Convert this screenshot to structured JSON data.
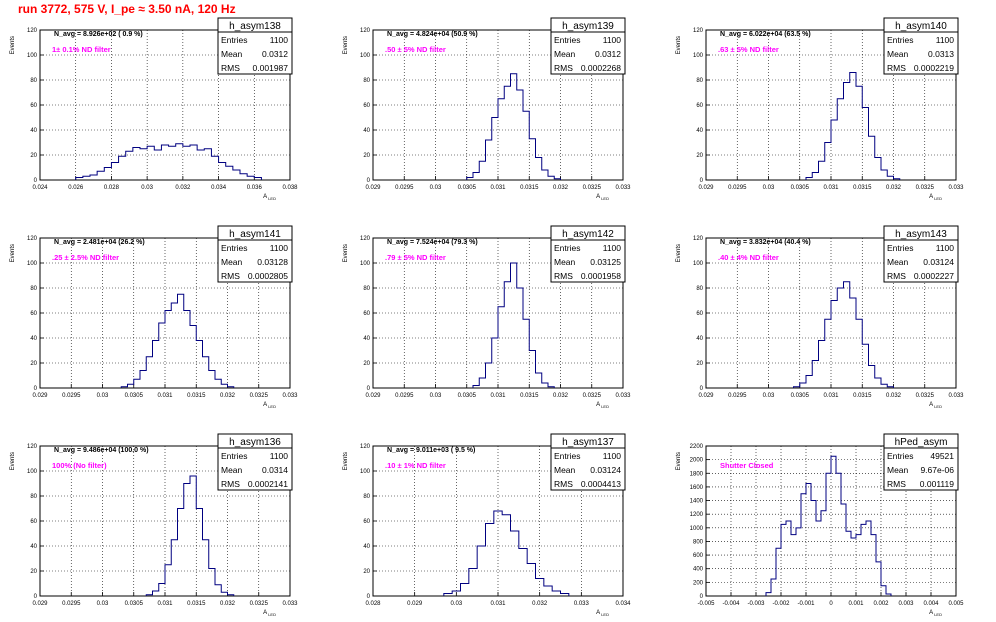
{
  "page": {
    "title": "run 3772,   575 V, I_pe ≈ 3.50 nA, 120 Hz",
    "title_color": "#ff0000",
    "hist_color": "#000080",
    "label_color": "#ff00ff",
    "stats_labels": {
      "entries": "Entries",
      "mean": "Mean",
      "rms": "RMS"
    }
  },
  "chart_data": [
    {
      "type": "histogram",
      "name": "h_asym138",
      "ylabel": "Events",
      "xlabel": "A_LED",
      "navg": "N_avg = 8.926e+02 ( 0.9 %)",
      "filter": "1± 0.1% ND filter",
      "entries": "1100",
      "mean": "0.0312",
      "rms": "0.001987",
      "xlim": [
        0.024,
        0.038
      ],
      "xticks": [
        "0.024",
        "0.026",
        "0.028",
        "0.03",
        "0.032",
        "0.034",
        "0.036",
        "0.038"
      ],
      "ylim": [
        0,
        120
      ],
      "yticks": [
        "0",
        "20",
        "40",
        "60",
        "80",
        "100",
        "120"
      ],
      "bins": [
        [
          0.0262,
          2
        ],
        [
          0.0266,
          3
        ],
        [
          0.027,
          4
        ],
        [
          0.0274,
          7
        ],
        [
          0.0278,
          10
        ],
        [
          0.0282,
          14
        ],
        [
          0.0286,
          19
        ],
        [
          0.029,
          23
        ],
        [
          0.0294,
          26
        ],
        [
          0.0298,
          25
        ],
        [
          0.0302,
          27
        ],
        [
          0.0306,
          24
        ],
        [
          0.031,
          28
        ],
        [
          0.0314,
          27
        ],
        [
          0.0318,
          29
        ],
        [
          0.0322,
          27
        ],
        [
          0.0326,
          28
        ],
        [
          0.033,
          24
        ],
        [
          0.0334,
          25
        ],
        [
          0.0338,
          19
        ],
        [
          0.0342,
          14
        ],
        [
          0.0346,
          11
        ],
        [
          0.035,
          8
        ],
        [
          0.0354,
          5
        ],
        [
          0.0358,
          3
        ],
        [
          0.0362,
          2
        ]
      ]
    },
    {
      "type": "histogram",
      "name": "h_asym139",
      "ylabel": "Events",
      "xlabel": "A_LED",
      "navg": "N_avg = 4.824e+04 (50.9 %)",
      "filter": ".50 ± 5% ND filter",
      "entries": "1100",
      "mean": "0.0312",
      "rms": "0.0002268",
      "xlim": [
        0.029,
        0.033
      ],
      "xticks": [
        "0.029",
        "0.0295",
        "0.03",
        "0.0305",
        "0.031",
        "0.0315",
        "0.032",
        "0.0325",
        "0.033"
      ],
      "ylim": [
        0,
        120
      ],
      "yticks": [
        "0",
        "20",
        "40",
        "60",
        "80",
        "100",
        "120"
      ],
      "bins": [
        [
          0.03055,
          2
        ],
        [
          0.03065,
          6
        ],
        [
          0.03075,
          15
        ],
        [
          0.03085,
          32
        ],
        [
          0.03095,
          50
        ],
        [
          0.03105,
          65
        ],
        [
          0.03115,
          75
        ],
        [
          0.03125,
          85
        ],
        [
          0.03135,
          72
        ],
        [
          0.03145,
          55
        ],
        [
          0.03155,
          33
        ],
        [
          0.03165,
          18
        ],
        [
          0.03175,
          8
        ],
        [
          0.03185,
          3
        ],
        [
          0.03195,
          1
        ]
      ]
    },
    {
      "type": "histogram",
      "name": "h_asym140",
      "ylabel": "Events",
      "xlabel": "A_LED",
      "navg": "N_avg = 6.022e+04 (63.5 %)",
      "filter": ".63 ± 5% ND filter",
      "entries": "1100",
      "mean": "0.0313",
      "rms": "0.0002219",
      "xlim": [
        0.029,
        0.033
      ],
      "xticks": [
        "0.029",
        "0.0295",
        "0.03",
        "0.0305",
        "0.031",
        "0.0315",
        "0.032",
        "0.0325",
        "0.033"
      ],
      "ylim": [
        0,
        120
      ],
      "yticks": [
        "0",
        "20",
        "40",
        "60",
        "80",
        "100",
        "120"
      ],
      "bins": [
        [
          0.03065,
          2
        ],
        [
          0.03075,
          6
        ],
        [
          0.03085,
          15
        ],
        [
          0.03095,
          30
        ],
        [
          0.03105,
          48
        ],
        [
          0.03115,
          65
        ],
        [
          0.03125,
          78
        ],
        [
          0.03135,
          86
        ],
        [
          0.03145,
          75
        ],
        [
          0.03155,
          58
        ],
        [
          0.03165,
          35
        ],
        [
          0.03175,
          18
        ],
        [
          0.03185,
          8
        ],
        [
          0.03195,
          3
        ],
        [
          0.03205,
          1
        ]
      ]
    },
    {
      "type": "histogram",
      "name": "h_asym141",
      "ylabel": "Events",
      "xlabel": "A_LED",
      "navg": "N_avg = 2.481e+04 (26.2 %)",
      "filter": ".25 ± 2.5% ND filter",
      "entries": "1100",
      "mean": "0.03128",
      "rms": "0.0002805",
      "xlim": [
        0.029,
        0.033
      ],
      "xticks": [
        "0.029",
        "0.0295",
        "0.03",
        "0.0305",
        "0.031",
        "0.0315",
        "0.032",
        "0.0325",
        "0.033"
      ],
      "ylim": [
        0,
        120
      ],
      "yticks": [
        "0",
        "20",
        "40",
        "60",
        "80",
        "100",
        "120"
      ],
      "bins": [
        [
          0.03035,
          1
        ],
        [
          0.03045,
          3
        ],
        [
          0.03055,
          7
        ],
        [
          0.03065,
          14
        ],
        [
          0.03075,
          25
        ],
        [
          0.03085,
          38
        ],
        [
          0.03095,
          52
        ],
        [
          0.03105,
          62
        ],
        [
          0.03115,
          68
        ],
        [
          0.03125,
          75
        ],
        [
          0.03135,
          62
        ],
        [
          0.03145,
          50
        ],
        [
          0.03155,
          38
        ],
        [
          0.03165,
          25
        ],
        [
          0.03175,
          14
        ],
        [
          0.03185,
          7
        ],
        [
          0.03195,
          3
        ],
        [
          0.03205,
          1
        ]
      ]
    },
    {
      "type": "histogram",
      "name": "h_asym142",
      "ylabel": "Events",
      "xlabel": "A_LED",
      "navg": "N_avg = 7.524e+04 (79.3 %)",
      "filter": ".79 ± 5% ND filter",
      "entries": "1100",
      "mean": "0.03125",
      "rms": "0.0001958",
      "xlim": [
        0.029,
        0.033
      ],
      "xticks": [
        "0.029",
        "0.0295",
        "0.03",
        "0.0305",
        "0.031",
        "0.0315",
        "0.032",
        "0.0325",
        "0.033"
      ],
      "ylim": [
        0,
        120
      ],
      "yticks": [
        "0",
        "20",
        "40",
        "60",
        "80",
        "100",
        "120"
      ],
      "bins": [
        [
          0.03065,
          2
        ],
        [
          0.03075,
          8
        ],
        [
          0.03085,
          20
        ],
        [
          0.03095,
          40
        ],
        [
          0.03105,
          65
        ],
        [
          0.03115,
          85
        ],
        [
          0.03125,
          100
        ],
        [
          0.03135,
          80
        ],
        [
          0.03145,
          55
        ],
        [
          0.03155,
          30
        ],
        [
          0.03165,
          12
        ],
        [
          0.03175,
          4
        ],
        [
          0.03185,
          1
        ]
      ]
    },
    {
      "type": "histogram",
      "name": "h_asym143",
      "ylabel": "Events",
      "xlabel": "A_LED",
      "navg": "N_avg = 3.832e+04 (40.4 %)",
      "filter": ".40 ± 4% ND filter",
      "entries": "1100",
      "mean": "0.03124",
      "rms": "0.0002227",
      "xlim": [
        0.029,
        0.033
      ],
      "xticks": [
        "0.029",
        "0.0295",
        "0.03",
        "0.0305",
        "0.031",
        "0.0315",
        "0.032",
        "0.0325",
        "0.033"
      ],
      "ylim": [
        0,
        120
      ],
      "yticks": [
        "0",
        "20",
        "40",
        "60",
        "80",
        "100",
        "120"
      ],
      "bins": [
        [
          0.03045,
          1
        ],
        [
          0.03055,
          4
        ],
        [
          0.03065,
          10
        ],
        [
          0.03075,
          22
        ],
        [
          0.03085,
          38
        ],
        [
          0.03095,
          55
        ],
        [
          0.03105,
          70
        ],
        [
          0.03115,
          80
        ],
        [
          0.03125,
          85
        ],
        [
          0.03135,
          72
        ],
        [
          0.03145,
          55
        ],
        [
          0.03155,
          35
        ],
        [
          0.03165,
          18
        ],
        [
          0.03175,
          8
        ],
        [
          0.03185,
          3
        ],
        [
          0.03195,
          1
        ]
      ]
    },
    {
      "type": "histogram",
      "name": "h_asym136",
      "ylabel": "Events",
      "xlabel": "A_LED",
      "navg": "N_avg = 9.486e+04 (100.0 %)",
      "filter": "100% (No filter)",
      "entries": "1100",
      "mean": "0.0314",
      "rms": "0.0002141",
      "xlim": [
        0.029,
        0.033
      ],
      "xticks": [
        "0.029",
        "0.0295",
        "0.03",
        "0.0305",
        "0.031",
        "0.0315",
        "0.032",
        "0.0325",
        "0.033"
      ],
      "ylim": [
        0,
        120
      ],
      "yticks": [
        "0",
        "20",
        "40",
        "60",
        "80",
        "100",
        "120"
      ],
      "bins": [
        [
          0.03075,
          1
        ],
        [
          0.03085,
          4
        ],
        [
          0.03095,
          10
        ],
        [
          0.03105,
          25
        ],
        [
          0.03115,
          45
        ],
        [
          0.03125,
          70
        ],
        [
          0.03135,
          90
        ],
        [
          0.03145,
          96
        ],
        [
          0.03155,
          70
        ],
        [
          0.03165,
          45
        ],
        [
          0.03175,
          22
        ],
        [
          0.03185,
          9
        ],
        [
          0.03195,
          3
        ],
        [
          0.03205,
          1
        ]
      ]
    },
    {
      "type": "histogram",
      "name": "h_asym137",
      "ylabel": "Events",
      "xlabel": "A_LED",
      "navg": "N_avg = 9.011e+03 ( 9.5 %)",
      "filter": ".10 ± 1% ND filter",
      "entries": "1100",
      "mean": "0.03124",
      "rms": "0.0004413",
      "xlim": [
        0.028,
        0.034
      ],
      "xticks": [
        "0.028",
        "0.029",
        "0.03",
        "0.031",
        "0.032",
        "0.033",
        "0.034"
      ],
      "ylim": [
        0,
        120
      ],
      "yticks": [
        "0",
        "20",
        "40",
        "60",
        "80",
        "100",
        "120"
      ],
      "bins": [
        [
          0.0298,
          2
        ],
        [
          0.03,
          4
        ],
        [
          0.0302,
          10
        ],
        [
          0.0304,
          22
        ],
        [
          0.0306,
          40
        ],
        [
          0.0308,
          58
        ],
        [
          0.031,
          68
        ],
        [
          0.0312,
          65
        ],
        [
          0.0314,
          52
        ],
        [
          0.0316,
          38
        ],
        [
          0.0318,
          26
        ],
        [
          0.032,
          14
        ],
        [
          0.0322,
          8
        ],
        [
          0.0324,
          4
        ],
        [
          0.0326,
          2
        ]
      ]
    },
    {
      "type": "histogram",
      "name": "hPed_asym",
      "ylabel": "Events",
      "xlabel": "A_LED",
      "navg": "",
      "filter": "Shutter Closed",
      "entries": "49521",
      "mean": "9.67e-06",
      "rms": "0.001119",
      "xlim": [
        -0.005,
        0.005
      ],
      "xticks": [
        "-0.005",
        "-0.004",
        "-0.003",
        "-0.002",
        "-0.001",
        "0",
        "0.001",
        "0.002",
        "0.003",
        "0.004",
        "0.005"
      ],
      "ylim": [
        0,
        2200
      ],
      "yticks": [
        "0",
        "200",
        "400",
        "600",
        "800",
        "1000",
        "1200",
        "1400",
        "1600",
        "1800",
        "2000",
        "2200"
      ],
      "bins": [
        [
          -0.0025,
          50
        ],
        [
          -0.0023,
          250
        ],
        [
          -0.0021,
          700
        ],
        [
          -0.0019,
          1050
        ],
        [
          -0.0017,
          1100
        ],
        [
          -0.0015,
          900
        ],
        [
          -0.0013,
          1000
        ],
        [
          -0.0011,
          1500
        ],
        [
          -0.0009,
          1650
        ],
        [
          -0.0007,
          1400
        ],
        [
          -0.0005,
          1100
        ],
        [
          -0.0003,
          1250
        ],
        [
          -0.0001,
          1800
        ],
        [
          0.0001,
          2050
        ],
        [
          0.0003,
          1800
        ],
        [
          0.0005,
          1350
        ],
        [
          0.0007,
          950
        ],
        [
          0.0009,
          850
        ],
        [
          0.0011,
          900
        ],
        [
          0.0013,
          1050
        ],
        [
          0.0015,
          1100
        ],
        [
          0.0017,
          900
        ],
        [
          0.0019,
          500
        ],
        [
          0.0021,
          150
        ],
        [
          0.0023,
          30
        ]
      ]
    }
  ]
}
